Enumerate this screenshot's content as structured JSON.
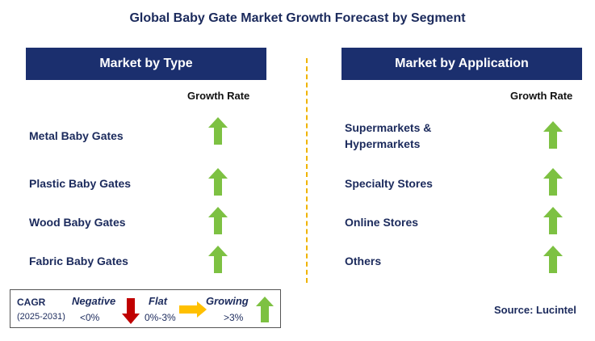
{
  "title": "Global Baby Gate Market Growth Forecast by Segment",
  "left_panel": {
    "header": "Market by Type",
    "growth_label": "Growth Rate",
    "rows": [
      {
        "label": "Metal Baby Gates"
      },
      {
        "label": "Plastic Baby Gates"
      },
      {
        "label": "Wood Baby Gates"
      },
      {
        "label": "Fabric Baby Gates"
      }
    ]
  },
  "right_panel": {
    "header": "Market by Application",
    "growth_label": "Growth Rate",
    "rows": [
      {
        "label_line1": "Supermarkets &",
        "label_line2": "Hypermarkets"
      },
      {
        "label": "Specialty Stores"
      },
      {
        "label": "Online Stores"
      },
      {
        "label": "Others"
      }
    ]
  },
  "legend": {
    "cagr": "CAGR",
    "period": "(2025-2031)",
    "negative_label": "Negative",
    "negative_range": "<0%",
    "flat_label": "Flat",
    "flat_range": "0%-3%",
    "growing_label": "Growing",
    "growing_range": ">3%"
  },
  "source": "Source: Lucintel",
  "colors": {
    "header_bg": "#1b2f6e",
    "growth_arrow": "#7dc142",
    "negative_arrow": "#c00000",
    "flat_arrow": "#ffc000",
    "divider": "#f0b400"
  },
  "icons": {
    "growing": "up-arrow-icon",
    "negative": "down-arrow-icon",
    "flat": "right-arrow-icon"
  }
}
